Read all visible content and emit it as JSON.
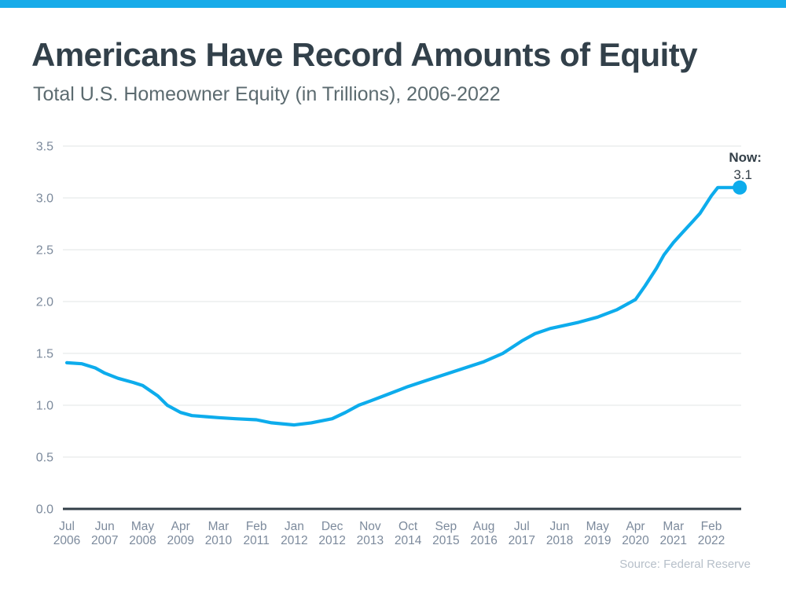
{
  "page": {
    "accent_color": "#17ABE9"
  },
  "header": {
    "title": "Americans Have Record Amounts of Equity",
    "subtitle": "Total U.S. Homeowner Equity (in Trillions), 2006-2022"
  },
  "footer": {
    "source": "Source: Federal Reserve"
  },
  "chart_data": {
    "type": "line",
    "title": "Americans Have Record Amounts of Equity",
    "subtitle": "Total U.S. Homeowner Equity (in Trillions), 2006-2022",
    "unit": "trillions of U.S. dollars",
    "grid": "horizontal",
    "legend_position": "none",
    "line_color": "#0DACEC",
    "grid_color": "#E2E4E6",
    "axis_color": "#333F48",
    "tick_label_color": "#7C8A9C",
    "ylim": [
      0,
      3.5
    ],
    "y_ticks": [
      0,
      0.5,
      1,
      1.5,
      2,
      2.5,
      3,
      3.5
    ],
    "x_tick_labels": [
      "Jul 2006",
      "Jun 2007",
      "May 2008",
      "Apr 2009",
      "Mar 2010",
      "Feb 2011",
      "Jan 2012",
      "Dec 2012",
      "Nov 2013",
      "Oct 2014",
      "Sep 2015",
      "Aug 2016",
      "Jul 2017",
      "Jun 2018",
      "May 2019",
      "Apr 2020",
      "Mar 2021",
      "Feb 2022"
    ],
    "series": [
      {
        "name": "Total U.S. Homeowner Equity ($ Trillions)",
        "points": [
          [
            0,
            1.41
          ],
          [
            0.4,
            1.4
          ],
          [
            0.75,
            1.36
          ],
          [
            1,
            1.31
          ],
          [
            1.35,
            1.26
          ],
          [
            1.75,
            1.22
          ],
          [
            2,
            1.19
          ],
          [
            2.4,
            1.09
          ],
          [
            2.65,
            1.0
          ],
          [
            3,
            0.93
          ],
          [
            3.3,
            0.9
          ],
          [
            3.65,
            0.89
          ],
          [
            4,
            0.88
          ],
          [
            4.45,
            0.87
          ],
          [
            5,
            0.86
          ],
          [
            5.4,
            0.83
          ],
          [
            6,
            0.81
          ],
          [
            6.45,
            0.83
          ],
          [
            7,
            0.87
          ],
          [
            7.35,
            0.93
          ],
          [
            7.7,
            1.0
          ],
          [
            8,
            1.04
          ],
          [
            8.5,
            1.11
          ],
          [
            9,
            1.18
          ],
          [
            9.5,
            1.24
          ],
          [
            10,
            1.3
          ],
          [
            10.5,
            1.36
          ],
          [
            11,
            1.42
          ],
          [
            11.5,
            1.5
          ],
          [
            12,
            1.62
          ],
          [
            12.35,
            1.69
          ],
          [
            12.75,
            1.74
          ],
          [
            13,
            1.76
          ],
          [
            13.5,
            1.8
          ],
          [
            14,
            1.85
          ],
          [
            14.5,
            1.92
          ],
          [
            15,
            2.02
          ],
          [
            15.25,
            2.15
          ],
          [
            15.55,
            2.32
          ],
          [
            15.75,
            2.45
          ],
          [
            16,
            2.57
          ],
          [
            16.25,
            2.67
          ],
          [
            16.5,
            2.77
          ],
          [
            16.7,
            2.85
          ],
          [
            17,
            3.02
          ],
          [
            17.17,
            3.1
          ],
          [
            17.75,
            3.1
          ]
        ]
      }
    ],
    "annotation": {
      "label": "Now:",
      "value": "3.1",
      "x": 17.75,
      "y": 3.1
    }
  }
}
